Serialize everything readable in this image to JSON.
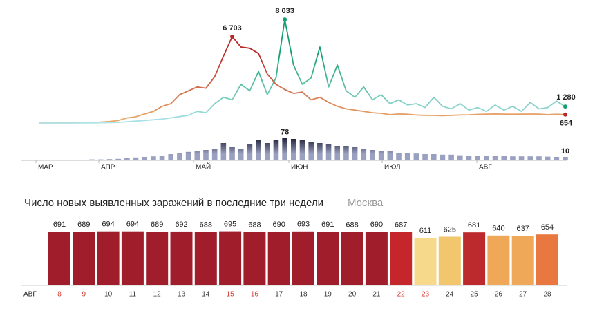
{
  "chart_data": [
    {
      "type": "line",
      "x_labels": [
        "МАР",
        "АПР",
        "МАЙ",
        "ИЮН",
        "ИЮЛ",
        "АВГ"
      ],
      "ylim": [
        0,
        8900
      ],
      "series": [
        {
          "name": null,
          "colors": [
            "#ebb06e",
            "#b82a2a"
          ],
          "values": [
            0,
            0,
            3,
            6,
            20,
            33,
            40,
            70,
            120,
            200,
            390,
            480,
            700,
            900,
            1300,
            1500,
            2200,
            2500,
            2800,
            2700,
            3600,
            5200,
            6703,
            5900,
            5800,
            5400,
            3800,
            3000,
            2600,
            2300,
            2400,
            1800,
            2000,
            1600,
            1300,
            1100,
            1000,
            900,
            800,
            750,
            650,
            700,
            680,
            620,
            600,
            590,
            570,
            600,
            620,
            640,
            670,
            690,
            700,
            690,
            680,
            690,
            695,
            690,
            650,
            680,
            654
          ],
          "value_labels": [
            null,
            null,
            null,
            null,
            null,
            null,
            null,
            null,
            null,
            null,
            null,
            null,
            null,
            null,
            null,
            null,
            null,
            null,
            null,
            null,
            null,
            null,
            "6 703",
            null,
            null,
            null,
            null,
            null,
            null,
            null,
            null,
            null,
            null,
            null,
            null,
            null,
            null,
            null,
            null,
            null,
            null,
            null,
            null,
            null,
            null,
            null,
            null,
            null,
            null,
            null,
            null,
            null,
            null,
            null,
            null,
            null,
            null,
            null,
            null,
            null,
            "654"
          ],
          "dot_color": "#b82a2a"
        },
        {
          "name": null,
          "colors": [
            "#aee3ea",
            "#16a070"
          ],
          "values": [
            0,
            0,
            0,
            0,
            0,
            5,
            10,
            20,
            30,
            50,
            100,
            150,
            200,
            250,
            300,
            400,
            500,
            600,
            900,
            800,
            1500,
            2000,
            1800,
            3000,
            2500,
            4000,
            2200,
            3500,
            8033,
            4500,
            3000,
            3500,
            5900,
            2800,
            4500,
            2500,
            2000,
            2800,
            1800,
            2200,
            1500,
            1800,
            1400,
            1500,
            1200,
            2000,
            1300,
            1100,
            1500,
            1000,
            1200,
            900,
            1400,
            1000,
            1300,
            900,
            1600,
            1100,
            1200,
            1700,
            1280
          ],
          "value_labels": [
            null,
            null,
            null,
            null,
            null,
            null,
            null,
            null,
            null,
            null,
            null,
            null,
            null,
            null,
            null,
            null,
            null,
            null,
            null,
            null,
            null,
            null,
            null,
            null,
            null,
            null,
            null,
            null,
            "8 033",
            null,
            null,
            null,
            null,
            null,
            null,
            null,
            null,
            null,
            null,
            null,
            null,
            null,
            null,
            null,
            null,
            null,
            null,
            null,
            null,
            null,
            null,
            null,
            null,
            null,
            null,
            null,
            null,
            null,
            null,
            null,
            "1 280"
          ],
          "dot_color": "#16a070"
        }
      ]
    },
    {
      "type": "bar",
      "ylim": [
        0,
        80
      ],
      "colors": [
        "#9aa0c0",
        "#1a1c33"
      ],
      "values": [
        0,
        0,
        0,
        0,
        0,
        0,
        1,
        1,
        2,
        3,
        5,
        8,
        10,
        12,
        15,
        20,
        25,
        28,
        30,
        35,
        40,
        60,
        45,
        40,
        55,
        70,
        60,
        70,
        78,
        75,
        70,
        65,
        60,
        55,
        50,
        50,
        45,
        40,
        35,
        30,
        30,
        25,
        25,
        22,
        20,
        20,
        18,
        18,
        16,
        15,
        14,
        14,
        13,
        13,
        12,
        12,
        12,
        12,
        11,
        10,
        10
      ],
      "value_labels": [
        null,
        null,
        null,
        null,
        null,
        null,
        null,
        null,
        null,
        null,
        null,
        null,
        null,
        null,
        null,
        null,
        null,
        null,
        null,
        null,
        null,
        null,
        null,
        null,
        null,
        null,
        null,
        null,
        "78",
        null,
        null,
        null,
        null,
        null,
        null,
        null,
        null,
        null,
        null,
        null,
        null,
        null,
        null,
        null,
        null,
        null,
        null,
        null,
        null,
        null,
        null,
        null,
        null,
        null,
        null,
        null,
        null,
        null,
        null,
        null,
        "10"
      ]
    },
    {
      "type": "bar",
      "title": "Число новых выявленных заражений в последние три недели",
      "subtitle": "Москва",
      "month": "АВГ",
      "ylim": [
        0,
        780
      ],
      "categories": [
        "8",
        "9",
        "10",
        "11",
        "12",
        "13",
        "14",
        "15",
        "16",
        "17",
        "18",
        "19",
        "20",
        "21",
        "22",
        "23",
        "24",
        "25",
        "26",
        "27",
        "28"
      ],
      "values": [
        691,
        689,
        694,
        694,
        689,
        692,
        688,
        695,
        688,
        690,
        693,
        691,
        688,
        690,
        687,
        611,
        625,
        681,
        640,
        637,
        654
      ],
      "colors": [
        "#a01e2c",
        "#a01e2c",
        "#a01e2c",
        "#a01e2c",
        "#a01e2c",
        "#a01e2c",
        "#a01e2c",
        "#a01e2c",
        "#a01e2c",
        "#a01e2c",
        "#a01e2c",
        "#a01e2c",
        "#a01e2c",
        "#a01e2c",
        "#c4262c",
        "#f6d98a",
        "#f2c66c",
        "#bd2a2d",
        "#eea857",
        "#eea857",
        "#e8783f"
      ],
      "category_colors": [
        "#d03a2e",
        "#d03a2e",
        "#333333",
        "#333333",
        "#333333",
        "#333333",
        "#333333",
        "#d03a2e",
        "#d03a2e",
        "#333333",
        "#333333",
        "#333333",
        "#333333",
        "#333333",
        "#d03a2e",
        "#d03a2e",
        "#333333",
        "#333333",
        "#333333",
        "#333333",
        "#333333"
      ]
    }
  ]
}
